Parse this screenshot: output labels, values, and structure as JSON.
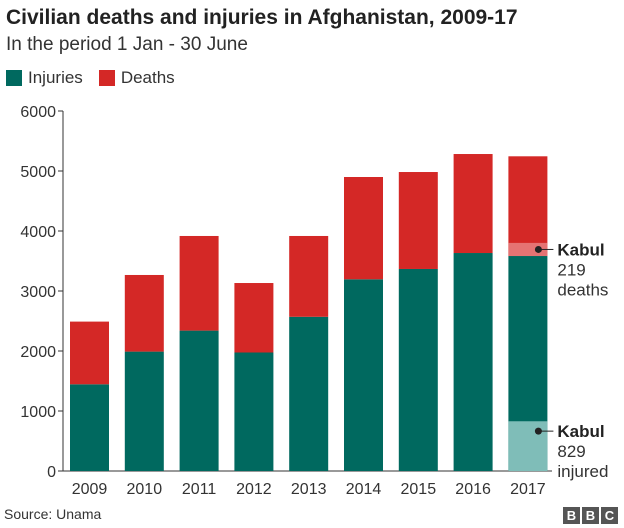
{
  "chart_data": {
    "type": "bar",
    "stacked": true,
    "title": "Civilian deaths and injuries in Afghanistan, 2009-17",
    "subtitle": "In the period 1 Jan - 30 June",
    "categories": [
      "2009",
      "2010",
      "2011",
      "2012",
      "2013",
      "2014",
      "2015",
      "2016",
      "2017"
    ],
    "series": [
      {
        "name": "Injuries",
        "color": "#00695f",
        "values": [
          1445,
          1990,
          2340,
          1975,
          2570,
          3195,
          3367,
          3633,
          3583
        ]
      },
      {
        "name": "Deaths",
        "color": "#d42826",
        "values": [
          1045,
          1277,
          1577,
          1158,
          1347,
          1705,
          1616,
          1650,
          1662
        ]
      }
    ],
    "ylim": [
      0,
      6000
    ],
    "yticks": [
      0,
      1000,
      2000,
      3000,
      4000,
      5000,
      6000
    ],
    "xlabel": "",
    "ylabel": "",
    "legend_position": "top-left",
    "annotations": [
      {
        "category": "2017",
        "series": "Deaths",
        "label": "Kabul",
        "text1": "219",
        "text2": "deaths",
        "value": 219,
        "color": "#e57373"
      },
      {
        "category": "2017",
        "series": "Injuries",
        "label": "Kabul",
        "text1": "829",
        "text2": "injured",
        "value": 829,
        "color": "#7fbdb8"
      }
    ]
  },
  "source": "Source: Unama",
  "logo": [
    "B",
    "B",
    "C"
  ]
}
